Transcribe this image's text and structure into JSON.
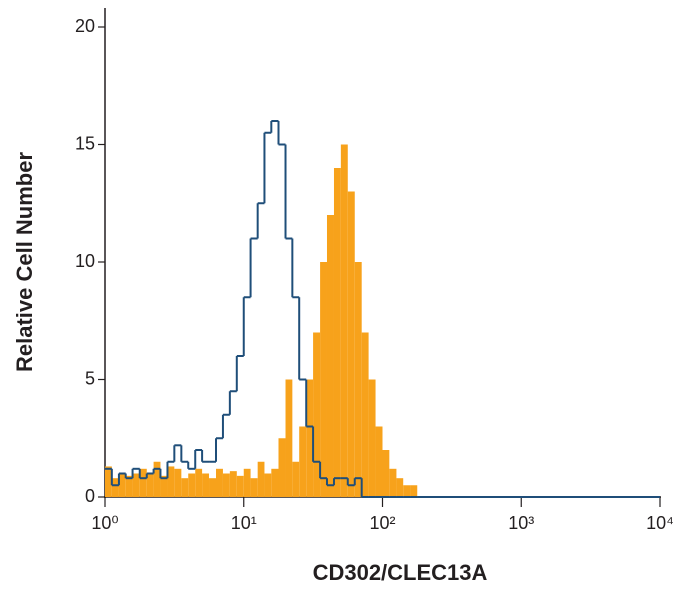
{
  "chart_data": {
    "type": "histogram",
    "x_label": "CD302/CLEC13A",
    "y_label": "Relative Cell Number",
    "xscale": "log",
    "bins": [
      1,
      1.12,
      1.26,
      1.41,
      1.58,
      1.78,
      2,
      2.24,
      2.51,
      2.82,
      3.16,
      3.55,
      3.98,
      4.47,
      5.01,
      5.62,
      6.31,
      7.08,
      7.94,
      8.91,
      10,
      11.2,
      12.6,
      14.1,
      15.8,
      17.8,
      20,
      22.4,
      25.1,
      28.2,
      31.6,
      35.5,
      39.8,
      44.7,
      50.1,
      56.2,
      63.1,
      70.8,
      79.4,
      89.1,
      100,
      112,
      126,
      141,
      158,
      178,
      10000
    ],
    "series": [
      {
        "style": "filled",
        "color": "#f7a21b",
        "values": [
          1.3,
          0.8,
          1.0,
          0.9,
          1.0,
          1.2,
          1.0,
          1.5,
          0.9,
          1.3,
          1.2,
          0.8,
          1.0,
          1.2,
          1.0,
          0.8,
          1.2,
          1.0,
          1.1,
          0.9,
          1.2,
          0.8,
          1.5,
          1.0,
          1.2,
          2.5,
          5.0,
          1.5,
          3.0,
          5.0,
          7.0,
          10.0,
          12.0,
          14.0,
          15.0,
          13.0,
          10.0,
          7.0,
          5.0,
          3.0,
          2.0,
          1.2,
          0.8,
          0.5,
          0.5,
          0
        ]
      },
      {
        "style": "outline",
        "color": "#1f4e79",
        "values": [
          1.2,
          0.5,
          1.0,
          0.8,
          1.2,
          0.8,
          1.0,
          1.2,
          0.8,
          1.5,
          2.2,
          1.5,
          1.2,
          2.0,
          1.5,
          1.5,
          2.5,
          3.5,
          4.5,
          6.0,
          8.5,
          11.0,
          12.5,
          15.5,
          16.0,
          15.0,
          11.0,
          8.5,
          5.0,
          3.0,
          1.5,
          0.8,
          0.5,
          0.8,
          0.8,
          0.5,
          0.8,
          0,
          0,
          0,
          0,
          0,
          0,
          0,
          0,
          0
        ]
      }
    ],
    "xlim": [
      1,
      10000
    ],
    "ylim": [
      0,
      20
    ],
    "xticks": [
      {
        "value": 1,
        "label": "10⁰"
      },
      {
        "value": 10,
        "label": "10¹"
      },
      {
        "value": 100,
        "label": "10²"
      },
      {
        "value": 1000,
        "label": "10³"
      },
      {
        "value": 10000,
        "label": "10⁴"
      }
    ],
    "yticks": [
      0,
      5,
      10,
      15,
      20
    ]
  }
}
